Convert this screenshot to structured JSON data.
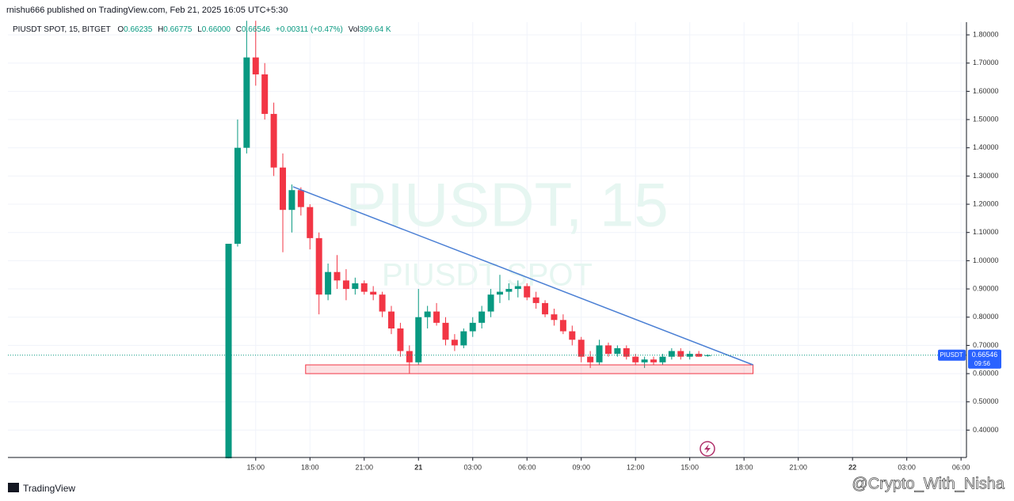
{
  "publisher": "rnishu666 published on TradingView.com, Feb 21, 2025 16:05 UTC+5:30",
  "legend": {
    "symbol": "PIUSDT SPOT, 15, BITGET",
    "o_key": "O",
    "o": "0.66235",
    "h_key": "H",
    "h": "0.66775",
    "l_key": "L",
    "l": "0.66000",
    "c_key": "C",
    "c": "0.66546",
    "change": "+0.00311 (+0.47%)",
    "vol_key": "Vol",
    "vol": "399.64 K"
  },
  "watermark": {
    "line1": "PIUSDT, 15",
    "line2": "PIUSDT SPOT"
  },
  "price_tag": {
    "symbol": "PIUSDT",
    "countdown": "09:56"
  },
  "footer": {
    "logo": "TradingView",
    "credit": "@Crypto_With_Nisha"
  },
  "chart_data": {
    "type": "candlestick",
    "up_color": "#089981",
    "down_color": "#f23645",
    "x": [
      -1.5,
      -1,
      -0.5,
      0,
      0.5,
      1,
      1.5,
      2,
      2.5,
      3,
      3.5,
      4,
      4.5,
      5,
      5.5,
      6,
      6.5,
      7,
      7.5,
      8,
      8.5,
      9,
      9.5,
      10,
      10.5,
      11,
      11.5,
      12,
      12.5,
      13,
      13.5,
      14,
      14.5,
      15,
      15.5,
      16,
      16.5,
      17,
      17.5,
      18,
      18.5,
      19,
      19.5,
      20,
      20.5,
      21,
      21.5,
      22,
      22.5,
      23,
      23.5,
      24,
      24.5,
      25
    ],
    "open": [
      0.3,
      1.06,
      1.4,
      1.72,
      1.66,
      1.52,
      1.33,
      1.18,
      1.25,
      1.19,
      1.08,
      0.88,
      0.96,
      0.93,
      0.9,
      0.92,
      0.89,
      0.88,
      0.82,
      0.76,
      0.68,
      0.64,
      0.8,
      0.82,
      0.78,
      0.72,
      0.7,
      0.75,
      0.78,
      0.82,
      0.88,
      0.89,
      0.9,
      0.91,
      0.87,
      0.85,
      0.81,
      0.79,
      0.75,
      0.72,
      0.66,
      0.64,
      0.7,
      0.67,
      0.69,
      0.66,
      0.64,
      0.65,
      0.64,
      0.66,
      0.68,
      0.66,
      0.67,
      0.66235
    ],
    "high": [
      1.06,
      1.5,
      1.85,
      1.85,
      1.7,
      1.56,
      1.38,
      1.27,
      1.26,
      1.2,
      1.1,
      0.99,
      1.02,
      0.97,
      0.94,
      0.93,
      0.91,
      0.89,
      0.84,
      0.78,
      0.7,
      0.9,
      0.84,
      0.85,
      0.8,
      0.74,
      0.76,
      0.8,
      0.84,
      0.9,
      0.95,
      0.92,
      0.93,
      0.92,
      0.89,
      0.86,
      0.83,
      0.81,
      0.77,
      0.73,
      0.68,
      0.72,
      0.71,
      0.7,
      0.7,
      0.67,
      0.66,
      0.66,
      0.67,
      0.69,
      0.69,
      0.68,
      0.68,
      0.66775
    ],
    "low": [
      0.3,
      1.05,
      1.38,
      1.62,
      1.5,
      1.3,
      1.03,
      1.1,
      1.16,
      1.04,
      0.81,
      0.86,
      0.9,
      0.86,
      0.88,
      0.88,
      0.86,
      0.8,
      0.74,
      0.66,
      0.6,
      0.63,
      0.76,
      0.77,
      0.7,
      0.68,
      0.69,
      0.73,
      0.76,
      0.8,
      0.85,
      0.86,
      0.87,
      0.86,
      0.83,
      0.8,
      0.77,
      0.74,
      0.7,
      0.64,
      0.62,
      0.63,
      0.66,
      0.66,
      0.65,
      0.63,
      0.62,
      0.63,
      0.63,
      0.65,
      0.65,
      0.65,
      0.66,
      0.66
    ],
    "close": [
      1.06,
      1.4,
      1.72,
      1.66,
      1.52,
      1.33,
      1.18,
      1.25,
      1.19,
      1.08,
      0.88,
      0.96,
      0.93,
      0.9,
      0.92,
      0.89,
      0.88,
      0.82,
      0.76,
      0.68,
      0.64,
      0.8,
      0.82,
      0.78,
      0.72,
      0.7,
      0.75,
      0.78,
      0.82,
      0.88,
      0.89,
      0.9,
      0.91,
      0.87,
      0.85,
      0.81,
      0.79,
      0.75,
      0.72,
      0.66,
      0.64,
      0.7,
      0.67,
      0.69,
      0.66,
      0.64,
      0.65,
      0.64,
      0.66,
      0.68,
      0.66,
      0.67,
      0.66,
      0.66546
    ],
    "xlim": [
      -13.7,
      39.3
    ],
    "xticks": [
      {
        "value": 0,
        "label": "15:00"
      },
      {
        "value": 3,
        "label": "18:00"
      },
      {
        "value": 6,
        "label": "21:00"
      },
      {
        "value": 9,
        "label": "21"
      },
      {
        "value": 12,
        "label": "03:00"
      },
      {
        "value": 15,
        "label": "06:00"
      },
      {
        "value": 18,
        "label": "09:00"
      },
      {
        "value": 21,
        "label": "12:00"
      },
      {
        "value": 24,
        "label": "15:00"
      },
      {
        "value": 27,
        "label": "18:00"
      },
      {
        "value": 30,
        "label": "21:00"
      },
      {
        "value": 33,
        "label": "22"
      },
      {
        "value": 36,
        "label": "03:00"
      },
      {
        "value": 39,
        "label": "06:00"
      }
    ],
    "ylim": [
      0.303,
      1.845
    ],
    "yticks": [
      {
        "value": 0.4,
        "label": "0.40000"
      },
      {
        "value": 0.5,
        "label": "0.50000"
      },
      {
        "value": 0.6,
        "label": "0.60000"
      },
      {
        "value": 0.7,
        "label": "0.70000"
      },
      {
        "value": 0.8,
        "label": "0.80000"
      },
      {
        "value": 0.9,
        "label": "0.90000"
      },
      {
        "value": 1.0,
        "label": "1.00000"
      },
      {
        "value": 1.1,
        "label": "1.10000"
      },
      {
        "value": 1.2,
        "label": "1.20000"
      },
      {
        "value": 1.3,
        "label": "1.30000"
      },
      {
        "value": 1.4,
        "label": "1.40000"
      },
      {
        "value": 1.5,
        "label": "1.50000"
      },
      {
        "value": 1.6,
        "label": "1.60000"
      },
      {
        "value": 1.7,
        "label": "1.70000"
      },
      {
        "value": 1.8,
        "label": "1.80000"
      }
    ],
    "grid": true,
    "trendline": {
      "color": "#4a7fd4",
      "x": [
        2.06,
        27.5
      ],
      "y": [
        1.262,
        0.631
      ]
    },
    "support_zone": {
      "color": "#f23645",
      "x": [
        2.76,
        27.5
      ],
      "y": [
        0.6,
        0.631
      ]
    }
  }
}
